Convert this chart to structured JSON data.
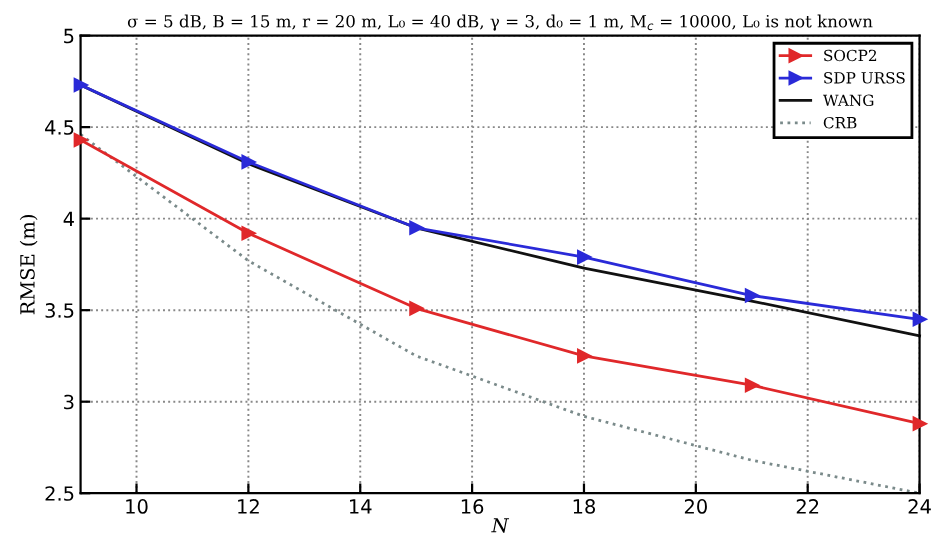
{
  "chart_data": {
    "type": "line",
    "title": "σ = 5 dB, B = 15 m, r = 20 m, L₀ = 40 dB, γ = 3, d₀ = 1 m, M$_{c}$ = 10000, L₀ is not known",
    "xlabel": "N",
    "ylabel": "RMSE (m)",
    "x": [
      9,
      12,
      15,
      18,
      21,
      24
    ],
    "series": [
      {
        "name": "SOCP2",
        "color": "#e0282a",
        "values": [
          4.43,
          3.92,
          3.51,
          3.25,
          3.09,
          2.88
        ],
        "marker": "triangle",
        "line_style": "solid"
      },
      {
        "name": "SDP URSS",
        "color": "#2a2ad8",
        "values": [
          4.73,
          4.31,
          3.95,
          3.79,
          3.58,
          3.45
        ],
        "marker": "triangle",
        "line_style": "solid"
      },
      {
        "name": "WANG",
        "color": "#111111",
        "values": [
          4.73,
          4.3,
          3.95,
          3.73,
          3.55,
          3.36
        ],
        "marker": "none",
        "line_style": "solid"
      },
      {
        "name": "CRB",
        "color": "#7a8a8a",
        "values": [
          4.46,
          3.77,
          3.25,
          2.92,
          2.68,
          2.5
        ],
        "marker": "none",
        "line_style": "dotted"
      }
    ],
    "xlim": [
      9,
      24
    ],
    "xticks": [
      10,
      12,
      14,
      16,
      18,
      20,
      22,
      24
    ],
    "ylim": [
      2.5,
      5
    ],
    "yticks": [
      2.5,
      3,
      3.5,
      4,
      4.5,
      5
    ],
    "grid": true,
    "legend": "top right"
  }
}
